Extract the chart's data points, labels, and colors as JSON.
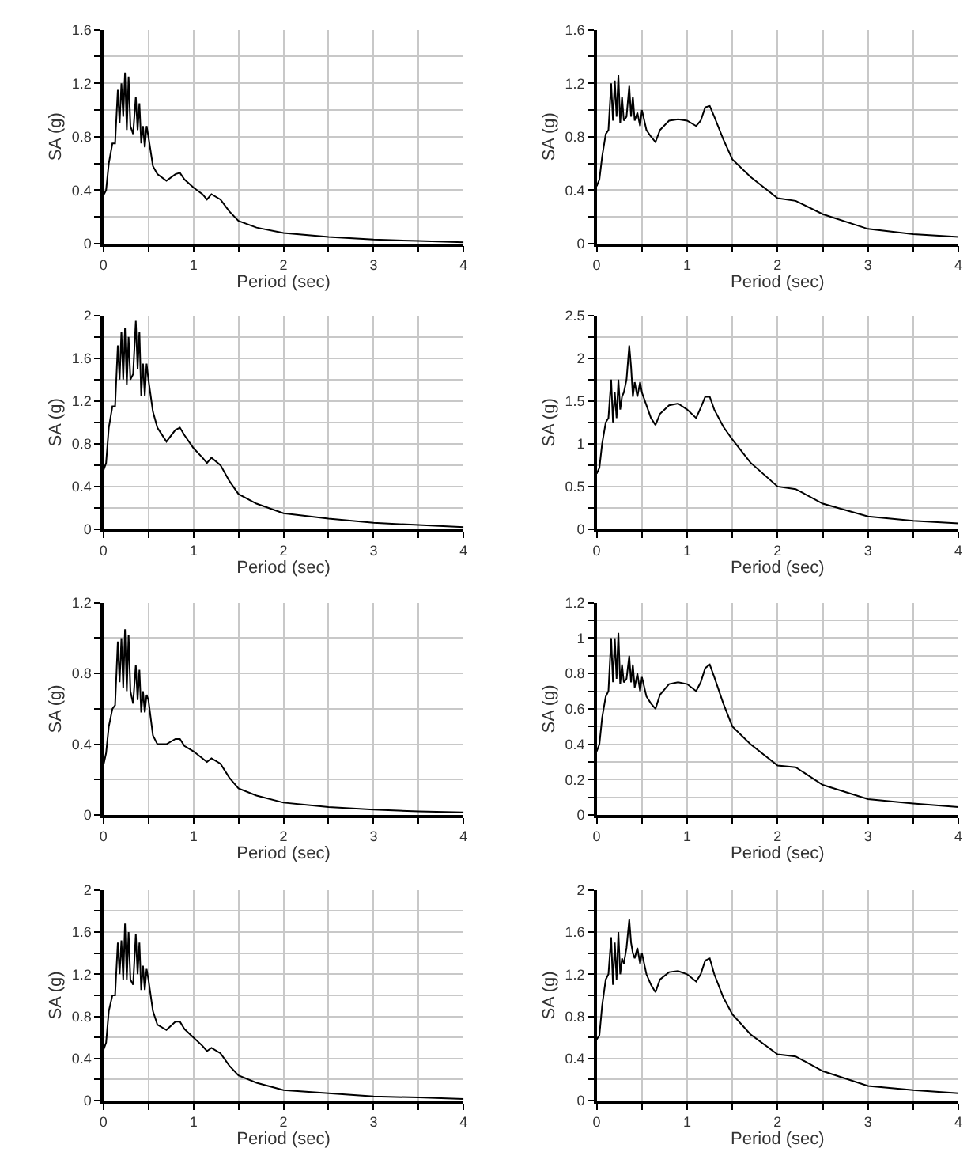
{
  "chart_data": [
    {
      "type": "line",
      "xlabel": "Period (sec)",
      "ylabel": "SA (g)",
      "xlim": [
        0,
        4
      ],
      "ylim": [
        0,
        1.6
      ],
      "grid": true,
      "xticks": [
        0,
        {
          "value": 0.5,
          "label": null
        },
        1,
        {
          "value": 1.5,
          "label": null
        },
        2,
        {
          "value": 2.5,
          "label": null
        },
        3,
        {
          "value": 3.5,
          "label": null
        },
        4
      ],
      "yticks": [
        0,
        {
          "value": 0.2,
          "label": null
        },
        0.4,
        {
          "value": 0.6,
          "label": null
        },
        0.8,
        {
          "value": 1,
          "label": null
        },
        1.2,
        {
          "value": 1.4,
          "label": null
        },
        1.6
      ],
      "x": [
        0,
        0.03,
        0.06,
        0.1,
        0.13,
        0.16,
        0.18,
        0.2,
        0.22,
        0.24,
        0.26,
        0.28,
        0.3,
        0.33,
        0.36,
        0.38,
        0.4,
        0.42,
        0.44,
        0.46,
        0.48,
        0.5,
        0.55,
        0.6,
        0.7,
        0.8,
        0.85,
        0.9,
        1.0,
        1.1,
        1.15,
        1.2,
        1.3,
        1.4,
        1.5,
        1.7,
        2.0,
        2.5,
        3.0,
        3.5,
        4.0
      ],
      "series": [
        {
          "color": "#000000",
          "values": [
            0.36,
            0.4,
            0.6,
            0.75,
            0.75,
            1.15,
            0.9,
            1.2,
            0.95,
            1.28,
            0.85,
            1.25,
            0.88,
            0.82,
            1.1,
            0.85,
            1.05,
            0.75,
            0.88,
            0.72,
            0.88,
            0.8,
            0.58,
            0.52,
            0.47,
            0.52,
            0.53,
            0.48,
            0.42,
            0.37,
            0.33,
            0.37,
            0.33,
            0.24,
            0.17,
            0.12,
            0.08,
            0.05,
            0.03,
            0.02,
            0.01
          ]
        }
      ]
    },
    {
      "type": "line",
      "xlabel": "Period (sec)",
      "ylabel": "SA (g)",
      "xlim": [
        0,
        4
      ],
      "ylim": [
        0,
        1.6
      ],
      "grid": true,
      "xticks": [
        0,
        {
          "value": 0.5,
          "label": null
        },
        1,
        {
          "value": 1.5,
          "label": null
        },
        2,
        {
          "value": 2.5,
          "label": null
        },
        3,
        {
          "value": 3.5,
          "label": null
        },
        4
      ],
      "yticks": [
        0,
        {
          "value": 0.2,
          "label": null
        },
        0.4,
        {
          "value": 0.6,
          "label": null
        },
        0.8,
        {
          "value": 1,
          "label": null
        },
        1.2,
        {
          "value": 1.4,
          "label": null
        },
        1.6
      ],
      "x": [
        0,
        0.03,
        0.06,
        0.1,
        0.13,
        0.16,
        0.18,
        0.2,
        0.22,
        0.24,
        0.26,
        0.28,
        0.3,
        0.33,
        0.36,
        0.38,
        0.4,
        0.42,
        0.45,
        0.48,
        0.5,
        0.55,
        0.6,
        0.65,
        0.7,
        0.8,
        0.9,
        1.0,
        1.1,
        1.15,
        1.2,
        1.25,
        1.3,
        1.4,
        1.5,
        1.7,
        2.0,
        2.2,
        2.5,
        3.0,
        3.5,
        4.0
      ],
      "series": [
        {
          "color": "#000000",
          "values": [
            0.43,
            0.48,
            0.65,
            0.82,
            0.85,
            1.2,
            0.92,
            1.22,
            0.95,
            1.26,
            0.9,
            1.1,
            0.92,
            0.95,
            1.18,
            0.95,
            1.1,
            0.92,
            0.98,
            0.88,
            1.0,
            0.85,
            0.8,
            0.76,
            0.85,
            0.92,
            0.93,
            0.92,
            0.88,
            0.92,
            1.02,
            1.03,
            0.95,
            0.78,
            0.63,
            0.5,
            0.34,
            0.32,
            0.22,
            0.11,
            0.07,
            0.05
          ]
        }
      ]
    },
    {
      "type": "line",
      "xlabel": "Period (sec)",
      "ylabel": "SA (g)",
      "xlim": [
        0,
        4
      ],
      "ylim": [
        0,
        2
      ],
      "grid": true,
      "xticks": [
        0,
        {
          "value": 0.5,
          "label": null
        },
        1,
        {
          "value": 1.5,
          "label": null
        },
        2,
        {
          "value": 2.5,
          "label": null
        },
        3,
        {
          "value": 3.5,
          "label": null
        },
        4
      ],
      "yticks": [
        0,
        {
          "value": 0.2,
          "label": null
        },
        0.4,
        {
          "value": 0.6,
          "label": null
        },
        0.8,
        {
          "value": 1,
          "label": null
        },
        1.2,
        {
          "value": 1.4,
          "label": null
        },
        1.6,
        {
          "value": 1.8,
          "label": null
        },
        2
      ],
      "x": [
        0,
        0.03,
        0.06,
        0.1,
        0.13,
        0.16,
        0.18,
        0.2,
        0.22,
        0.24,
        0.26,
        0.28,
        0.3,
        0.33,
        0.36,
        0.38,
        0.4,
        0.42,
        0.44,
        0.46,
        0.48,
        0.5,
        0.55,
        0.6,
        0.7,
        0.8,
        0.85,
        0.9,
        1.0,
        1.1,
        1.15,
        1.2,
        1.3,
        1.4,
        1.5,
        1.7,
        2.0,
        2.5,
        3.0,
        3.5,
        4.0
      ],
      "series": [
        {
          "color": "#000000",
          "values": [
            0.55,
            0.62,
            0.95,
            1.15,
            1.15,
            1.72,
            1.4,
            1.85,
            1.4,
            1.88,
            1.35,
            1.8,
            1.4,
            1.45,
            1.95,
            1.5,
            1.85,
            1.25,
            1.55,
            1.25,
            1.55,
            1.4,
            1.1,
            0.95,
            0.82,
            0.93,
            0.95,
            0.88,
            0.76,
            0.67,
            0.62,
            0.67,
            0.6,
            0.45,
            0.33,
            0.24,
            0.15,
            0.1,
            0.06,
            0.04,
            0.02
          ]
        }
      ]
    },
    {
      "type": "line",
      "xlabel": "Period (sec)",
      "ylabel": "SA (g)",
      "xlim": [
        0,
        4
      ],
      "ylim": [
        0,
        2.5
      ],
      "grid": true,
      "xticks": [
        0,
        {
          "value": 0.5,
          "label": null
        },
        1,
        {
          "value": 1.5,
          "label": null
        },
        2,
        {
          "value": 2.5,
          "label": null
        },
        3,
        {
          "value": 3.5,
          "label": null
        },
        4
      ],
      "yticks": [
        0,
        {
          "value": 0.25,
          "label": null
        },
        0.5,
        {
          "value": 0.75,
          "label": null
        },
        1,
        {
          "value": 1.25,
          "label": null
        },
        1.5,
        {
          "value": 1.75,
          "label": null
        },
        2,
        {
          "value": 2.25,
          "label": null
        },
        2.5
      ],
      "x": [
        0,
        0.03,
        0.06,
        0.1,
        0.13,
        0.16,
        0.18,
        0.2,
        0.22,
        0.24,
        0.26,
        0.28,
        0.3,
        0.33,
        0.36,
        0.38,
        0.4,
        0.42,
        0.45,
        0.48,
        0.5,
        0.55,
        0.6,
        0.65,
        0.7,
        0.8,
        0.9,
        1.0,
        1.1,
        1.15,
        1.2,
        1.25,
        1.3,
        1.4,
        1.5,
        1.7,
        2.0,
        2.2,
        2.5,
        3.0,
        3.5,
        4.0
      ],
      "series": [
        {
          "color": "#000000",
          "values": [
            0.65,
            0.72,
            1.0,
            1.25,
            1.3,
            1.75,
            1.25,
            1.6,
            1.3,
            1.75,
            1.4,
            1.55,
            1.6,
            1.75,
            2.15,
            1.9,
            1.55,
            1.72,
            1.55,
            1.72,
            1.6,
            1.45,
            1.3,
            1.22,
            1.35,
            1.45,
            1.47,
            1.4,
            1.3,
            1.42,
            1.55,
            1.55,
            1.4,
            1.2,
            1.05,
            0.78,
            0.5,
            0.47,
            0.3,
            0.15,
            0.1,
            0.07
          ]
        }
      ]
    },
    {
      "type": "line",
      "xlabel": "Period (sec)",
      "ylabel": "SA (g)",
      "xlim": [
        0,
        4
      ],
      "ylim": [
        0,
        1.2
      ],
      "grid": true,
      "xticks": [
        0,
        {
          "value": 0.5,
          "label": null
        },
        1,
        {
          "value": 1.5,
          "label": null
        },
        2,
        {
          "value": 2.5,
          "label": null
        },
        3,
        {
          "value": 3.5,
          "label": null
        },
        4
      ],
      "yticks": [
        0,
        {
          "value": 0.2,
          "label": null
        },
        0.4,
        {
          "value": 0.6,
          "label": null
        },
        0.8,
        {
          "value": 1,
          "label": null
        },
        1.2
      ],
      "x": [
        0,
        0.03,
        0.06,
        0.1,
        0.13,
        0.16,
        0.18,
        0.2,
        0.22,
        0.24,
        0.26,
        0.28,
        0.3,
        0.33,
        0.36,
        0.38,
        0.4,
        0.42,
        0.44,
        0.46,
        0.48,
        0.5,
        0.55,
        0.6,
        0.7,
        0.8,
        0.85,
        0.9,
        1.0,
        1.1,
        1.15,
        1.2,
        1.3,
        1.4,
        1.5,
        1.7,
        2.0,
        2.5,
        3.0,
        3.5,
        4.0
      ],
      "series": [
        {
          "color": "#000000",
          "values": [
            0.28,
            0.35,
            0.5,
            0.6,
            0.62,
            0.98,
            0.75,
            1.0,
            0.72,
            1.05,
            0.7,
            1.02,
            0.7,
            0.63,
            0.85,
            0.65,
            0.82,
            0.58,
            0.7,
            0.58,
            0.68,
            0.65,
            0.45,
            0.4,
            0.4,
            0.43,
            0.43,
            0.39,
            0.36,
            0.32,
            0.3,
            0.32,
            0.29,
            0.21,
            0.15,
            0.11,
            0.07,
            0.045,
            0.03,
            0.02,
            0.015
          ]
        }
      ]
    },
    {
      "type": "line",
      "xlabel": "Period (sec)",
      "ylabel": "SA (g)",
      "xlim": [
        0,
        4
      ],
      "ylim": [
        0,
        1.2
      ],
      "grid": true,
      "xticks": [
        0,
        {
          "value": 0.5,
          "label": null
        },
        1,
        {
          "value": 1.5,
          "label": null
        },
        2,
        {
          "value": 2.5,
          "label": null
        },
        3,
        {
          "value": 3.5,
          "label": null
        },
        4
      ],
      "yticks": [
        0,
        {
          "value": 0.1,
          "label": null
        },
        0.2,
        {
          "value": 0.3,
          "label": null
        },
        0.4,
        {
          "value": 0.5,
          "label": null
        },
        0.6,
        {
          "value": 0.7,
          "label": null
        },
        0.8,
        {
          "value": 0.9,
          "label": null
        },
        1,
        {
          "value": 1.1,
          "label": null
        },
        1.2
      ],
      "x": [
        0,
        0.03,
        0.06,
        0.1,
        0.13,
        0.16,
        0.18,
        0.2,
        0.22,
        0.24,
        0.26,
        0.28,
        0.3,
        0.33,
        0.36,
        0.38,
        0.4,
        0.42,
        0.45,
        0.48,
        0.5,
        0.55,
        0.6,
        0.65,
        0.7,
        0.8,
        0.9,
        1.0,
        1.1,
        1.15,
        1.2,
        1.25,
        1.3,
        1.4,
        1.5,
        1.7,
        2.0,
        2.2,
        2.5,
        3.0,
        3.5,
        4.0
      ],
      "series": [
        {
          "color": "#000000",
          "values": [
            0.36,
            0.4,
            0.55,
            0.67,
            0.7,
            1.0,
            0.75,
            1.0,
            0.77,
            1.03,
            0.74,
            0.85,
            0.75,
            0.77,
            0.9,
            0.75,
            0.85,
            0.72,
            0.8,
            0.7,
            0.78,
            0.67,
            0.63,
            0.6,
            0.68,
            0.74,
            0.75,
            0.74,
            0.7,
            0.75,
            0.83,
            0.85,
            0.78,
            0.63,
            0.5,
            0.4,
            0.28,
            0.27,
            0.17,
            0.09,
            0.065,
            0.045
          ]
        }
      ]
    },
    {
      "type": "line",
      "xlabel": "Period (sec)",
      "ylabel": "SA (g)",
      "xlim": [
        0,
        4
      ],
      "ylim": [
        0,
        2
      ],
      "grid": true,
      "xticks": [
        0,
        {
          "value": 0.5,
          "label": null
        },
        1,
        {
          "value": 1.5,
          "label": null
        },
        2,
        {
          "value": 2.5,
          "label": null
        },
        3,
        {
          "value": 3.5,
          "label": null
        },
        4
      ],
      "yticks": [
        0,
        {
          "value": 0.2,
          "label": null
        },
        0.4,
        {
          "value": 0.6,
          "label": null
        },
        0.8,
        {
          "value": 1,
          "label": null
        },
        1.2,
        {
          "value": 1.4,
          "label": null
        },
        1.6,
        {
          "value": 1.8,
          "label": null
        },
        2
      ],
      "x": [
        0,
        0.03,
        0.06,
        0.1,
        0.13,
        0.16,
        0.18,
        0.2,
        0.22,
        0.24,
        0.26,
        0.28,
        0.3,
        0.33,
        0.36,
        0.38,
        0.4,
        0.42,
        0.44,
        0.46,
        0.48,
        0.5,
        0.55,
        0.6,
        0.7,
        0.8,
        0.85,
        0.9,
        1.0,
        1.1,
        1.15,
        1.2,
        1.3,
        1.4,
        1.5,
        1.7,
        2.0,
        2.5,
        3.0,
        3.5,
        4.0
      ],
      "series": [
        {
          "color": "#000000",
          "values": [
            0.48,
            0.55,
            0.85,
            1.0,
            1.0,
            1.5,
            1.2,
            1.52,
            1.15,
            1.68,
            1.15,
            1.6,
            1.15,
            1.1,
            1.58,
            1.2,
            1.5,
            1.05,
            1.28,
            1.05,
            1.25,
            1.15,
            0.85,
            0.72,
            0.67,
            0.75,
            0.75,
            0.68,
            0.6,
            0.52,
            0.47,
            0.5,
            0.45,
            0.33,
            0.24,
            0.17,
            0.1,
            0.07,
            0.04,
            0.03,
            0.015
          ]
        }
      ]
    },
    {
      "type": "line",
      "xlabel": "Period (sec)",
      "ylabel": "SA (g)",
      "xlim": [
        0,
        4
      ],
      "ylim": [
        0,
        2
      ],
      "grid": true,
      "xticks": [
        0,
        {
          "value": 0.5,
          "label": null
        },
        1,
        {
          "value": 1.5,
          "label": null
        },
        2,
        {
          "value": 2.5,
          "label": null
        },
        3,
        {
          "value": 3.5,
          "label": null
        },
        4
      ],
      "yticks": [
        0,
        {
          "value": 0.2,
          "label": null
        },
        0.4,
        {
          "value": 0.6,
          "label": null
        },
        0.8,
        {
          "value": 1,
          "label": null
        },
        1.2,
        {
          "value": 1.4,
          "label": null
        },
        1.6,
        {
          "value": 1.8,
          "label": null
        },
        2
      ],
      "x": [
        0,
        0.03,
        0.06,
        0.1,
        0.13,
        0.16,
        0.18,
        0.2,
        0.22,
        0.24,
        0.26,
        0.28,
        0.3,
        0.33,
        0.36,
        0.38,
        0.4,
        0.42,
        0.45,
        0.48,
        0.5,
        0.55,
        0.6,
        0.65,
        0.7,
        0.8,
        0.9,
        1.0,
        1.1,
        1.15,
        1.2,
        1.25,
        1.3,
        1.4,
        1.5,
        1.7,
        2.0,
        2.2,
        2.5,
        3.0,
        3.5,
        4.0
      ],
      "series": [
        {
          "color": "#000000",
          "values": [
            0.58,
            0.62,
            0.9,
            1.15,
            1.2,
            1.55,
            1.1,
            1.5,
            1.15,
            1.6,
            1.2,
            1.35,
            1.3,
            1.45,
            1.72,
            1.5,
            1.4,
            1.35,
            1.45,
            1.3,
            1.4,
            1.2,
            1.1,
            1.03,
            1.15,
            1.22,
            1.23,
            1.2,
            1.13,
            1.2,
            1.33,
            1.35,
            1.2,
            0.98,
            0.82,
            0.63,
            0.44,
            0.42,
            0.28,
            0.14,
            0.1,
            0.07
          ]
        }
      ]
    }
  ]
}
